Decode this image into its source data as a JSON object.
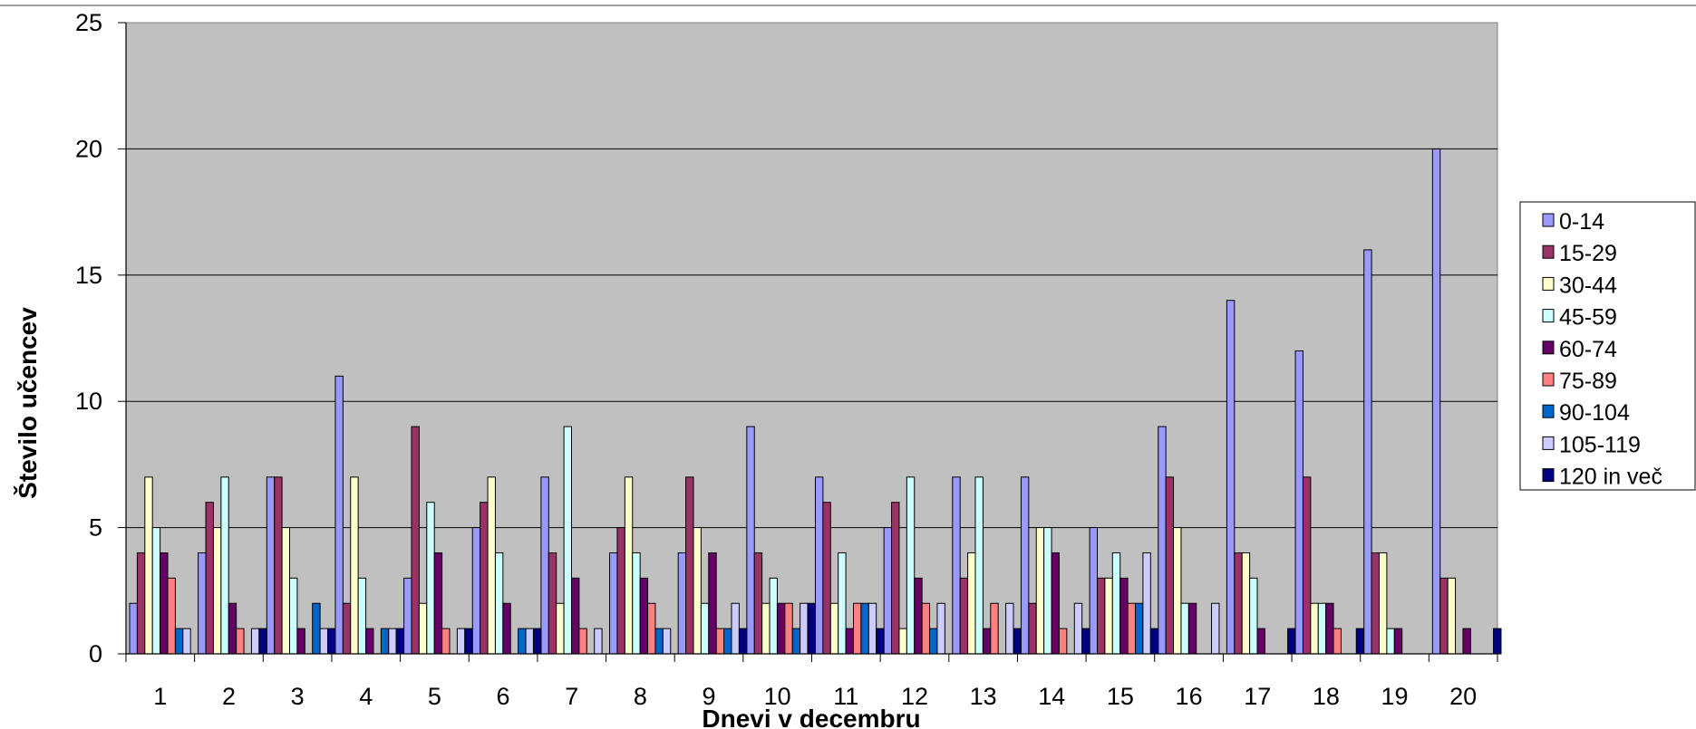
{
  "chart_data": {
    "type": "bar",
    "title": "",
    "xlabel": "Dnevi v decembru",
    "ylabel": "Število učencev",
    "ylim": [
      0,
      25
    ],
    "yticks": [
      "0",
      "5",
      "10",
      "15",
      "20",
      "25"
    ],
    "grid": true,
    "legend_position": "right",
    "plot_background": "#c0c0c0",
    "categories": [
      "1",
      "2",
      "3",
      "4",
      "5",
      "6",
      "7",
      "8",
      "9",
      "10",
      "11",
      "12",
      "13",
      "14",
      "15",
      "16",
      "17",
      "18",
      "19",
      "20"
    ],
    "series": [
      {
        "name": "0-14",
        "color": "#9999ff",
        "values": [
          2,
          4,
          7,
          11,
          3,
          5,
          7,
          4,
          4,
          9,
          7,
          5,
          7,
          7,
          5,
          9,
          14,
          12,
          16,
          20
        ]
      },
      {
        "name": "15-29",
        "color": "#993366",
        "values": [
          4,
          6,
          7,
          2,
          9,
          6,
          4,
          5,
          7,
          4,
          6,
          6,
          3,
          2,
          3,
          7,
          4,
          7,
          4,
          3
        ]
      },
      {
        "name": "30-44",
        "color": "#ffffcc",
        "values": [
          7,
          5,
          5,
          7,
          2,
          7,
          2,
          7,
          5,
          2,
          2,
          1,
          4,
          5,
          3,
          5,
          4,
          2,
          4,
          3
        ]
      },
      {
        "name": "45-59",
        "color": "#ccffff",
        "values": [
          5,
          7,
          3,
          3,
          6,
          4,
          9,
          4,
          2,
          3,
          4,
          7,
          7,
          5,
          4,
          2,
          3,
          2,
          1,
          0
        ]
      },
      {
        "name": "60-74",
        "color": "#660066",
        "values": [
          4,
          2,
          1,
          1,
          4,
          2,
          3,
          3,
          4,
          2,
          1,
          3,
          1,
          4,
          3,
          2,
          1,
          2,
          1,
          1
        ]
      },
      {
        "name": "75-89",
        "color": "#ff8080",
        "values": [
          3,
          1,
          0,
          0,
          1,
          0,
          1,
          2,
          1,
          2,
          2,
          2,
          2,
          1,
          2,
          0,
          0,
          1,
          0,
          0
        ]
      },
      {
        "name": "90-104",
        "color": "#0066cc",
        "values": [
          1,
          0,
          2,
          1,
          0,
          1,
          0,
          1,
          1,
          1,
          2,
          1,
          0,
          0,
          2,
          0,
          0,
          0,
          0,
          0
        ]
      },
      {
        "name": "105-119",
        "color": "#ccccff",
        "values": [
          1,
          1,
          1,
          1,
          1,
          1,
          1,
          1,
          2,
          2,
          2,
          2,
          2,
          2,
          4,
          2,
          0,
          0,
          0,
          0
        ]
      },
      {
        "name": "120 in več",
        "color": "#000080",
        "values": [
          0,
          1,
          1,
          1,
          1,
          1,
          0,
          0,
          1,
          2,
          1,
          0,
          1,
          1,
          1,
          0,
          1,
          1,
          0,
          1
        ]
      }
    ]
  }
}
